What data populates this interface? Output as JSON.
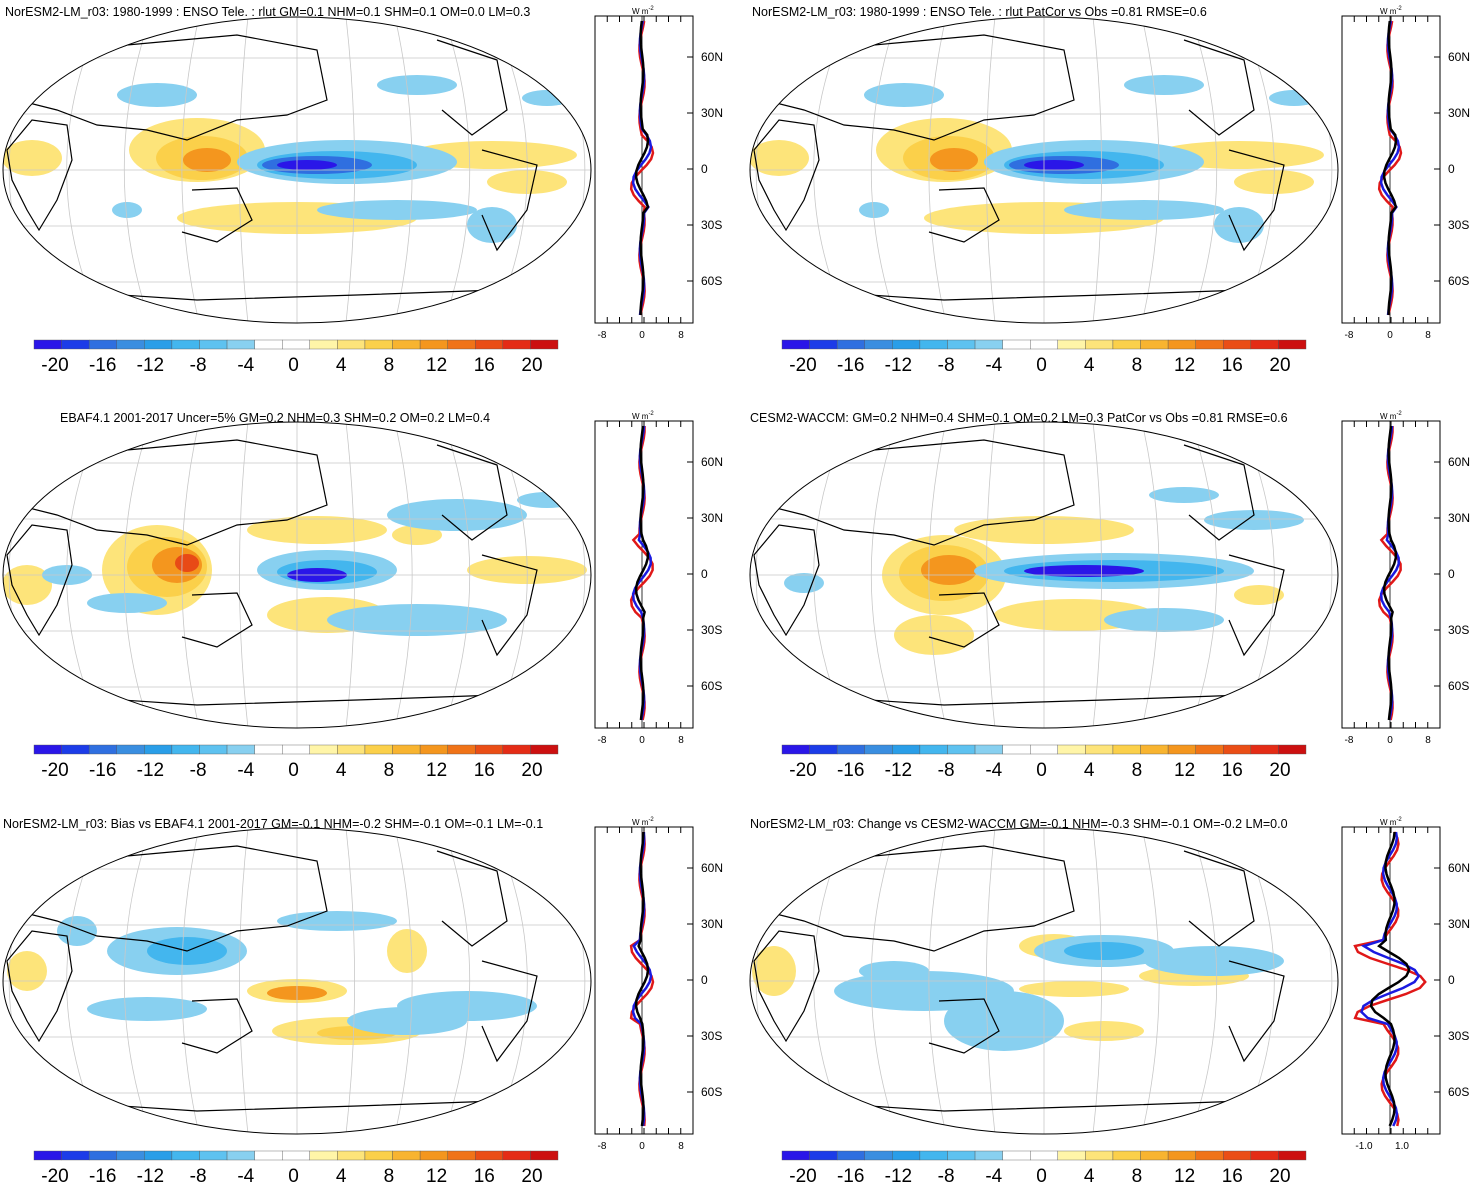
{
  "colors": {
    "scale": [
      "#2a16e8",
      "#1c3ce8",
      "#2f6fe0",
      "#3a8ee0",
      "#2a9ee8",
      "#43b6ee",
      "#5ec2f0",
      "#88d0f0",
      "#ffffff",
      "#ffffff",
      "#fff5a8",
      "#fde47a",
      "#fbd04a",
      "#f8b430",
      "#f4961e",
      "#f07318",
      "#ea4e16",
      "#e42c16",
      "#cc1010"
    ],
    "profile_obs": "#e01818",
    "profile_model": "#1a1ae0",
    "profile_ref": "#000000",
    "coast": "#000000",
    "grid": "#c8c8c8",
    "pos_fill": "#fde47a",
    "pos_mid": "#fbd04a",
    "pos_core": "#f4961e",
    "pos_peak": "#e84a16",
    "neg_fill": "#88d0f0",
    "neg_mid": "#43b6ee",
    "neg_core": "#2f6fe0",
    "neg_peak": "#2a16e8"
  },
  "colorbar": {
    "labels": [
      "-20",
      "-16",
      "-12",
      "-8",
      "-4",
      "0",
      "4",
      "8",
      "12",
      "16",
      "20"
    ]
  },
  "profile_units": "W m",
  "profile_units_exp": "-2",
  "lat_labels": [
    "60N",
    "30N",
    "0",
    "30S",
    "60S"
  ],
  "panels": [
    {
      "title": "NorESM2-LM_r03: 1980-1999 : ENSO Tele. : rlut GM=0.1 NHM=0.1 SHM=0.1 OM=0.0 LM=0.3",
      "xticks": [
        "-8",
        "0",
        "8"
      ]
    },
    {
      "title": "NorESM2-LM_r03: 1980-1999 : ENSO Tele. : rlut PatCor vs Obs =0.81 RMSE=0.6",
      "xticks": [
        "-8",
        "0",
        "8"
      ]
    },
    {
      "title": "EBAF4.1 2001-2017 Uncer=5% GM=0.2 NHM=0.3 SHM=0.2 OM=0.2 LM=0.4",
      "xticks": [
        "-8",
        "0",
        "8"
      ]
    },
    {
      "title": "CESM2-WACCM: GM=0.2 NHM=0.4 SHM=0.1 OM=0.2 LM=0.3 PatCor vs Obs =0.81 RMSE=0.6",
      "xticks": [
        "-8",
        "0",
        "8"
      ]
    },
    {
      "title": "NorESM2-LM_r03: Bias vs EBAF4.1 2001-2017 GM=-0.1 NHM=-0.2 SHM=-0.1 OM=-0.1 LM=-0.1",
      "xticks": [
        "-8",
        "0",
        "8"
      ]
    },
    {
      "title": "NorESM2-LM_r03: Change vs CESM2-WACCM GM=-0.1 NHM=-0.3 SHM=-0.1 OM=-0.2 LM=0.0",
      "xticks": [
        "-1.0",
        "1.0"
      ]
    }
  ]
}
